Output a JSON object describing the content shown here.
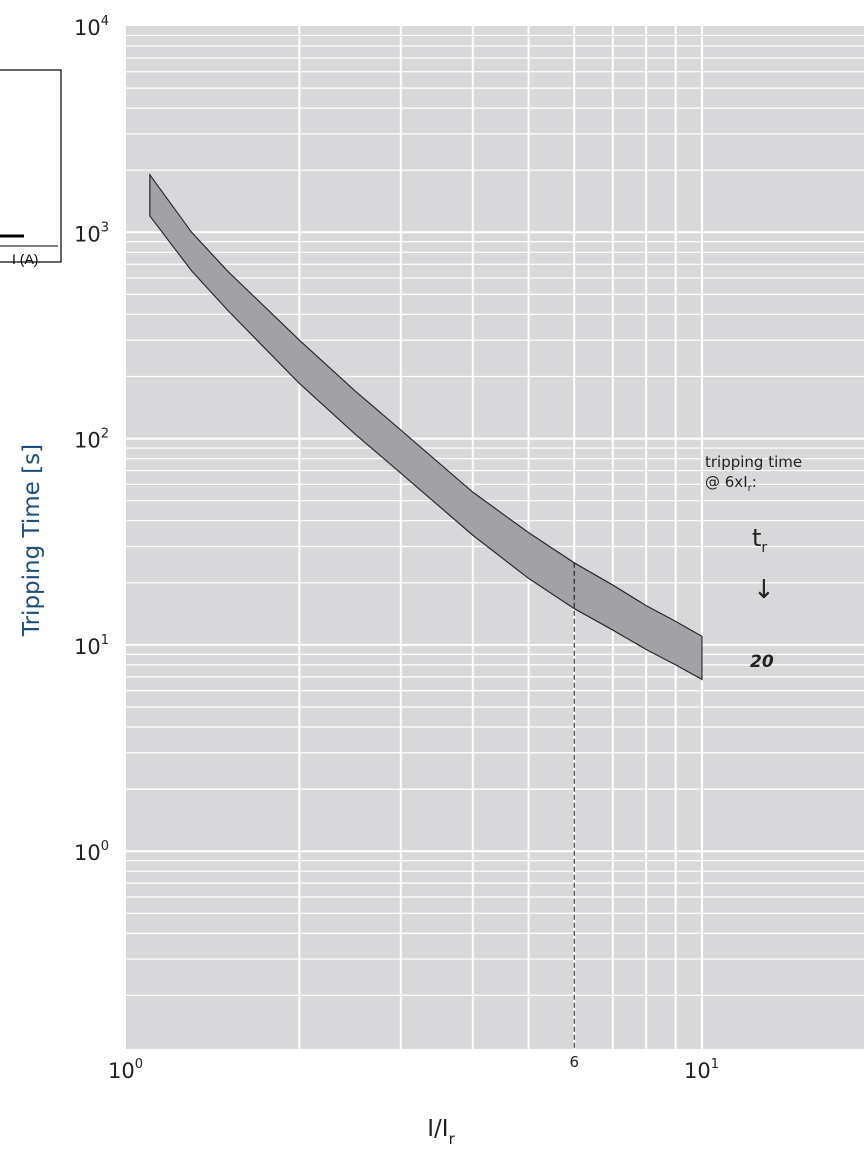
{
  "chart_data": {
    "type": "area",
    "title": "",
    "xlabel": "I/I",
    "xlabel_sub": "r",
    "ylabel": "Tripping Time [s]",
    "x_scale": "log",
    "y_scale": "log",
    "xlim": [
      1,
      14
    ],
    "ylim": [
      0.1,
      10000
    ],
    "grid": true,
    "x_ticks": [
      {
        "base": "10",
        "exp": "0",
        "value": 1
      },
      {
        "base": "10",
        "exp": "1",
        "value": 10
      }
    ],
    "x_extra_tick": {
      "label": "6",
      "value": 6
    },
    "y_ticks": [
      {
        "base": "10",
        "exp": "4",
        "value": 10000
      },
      {
        "base": "10",
        "exp": "3",
        "value": 1000
      },
      {
        "base": "10",
        "exp": "2",
        "value": 100
      },
      {
        "base": "10",
        "exp": "1",
        "value": 10
      },
      {
        "base": "10",
        "exp": "0",
        "value": 1
      }
    ],
    "band": {
      "x": [
        1.1,
        1.3,
        1.5,
        2,
        2.5,
        3,
        4,
        5,
        6,
        7,
        8,
        9,
        10
      ],
      "upper": [
        1900,
        1000,
        650,
        300,
        170,
        110,
        55,
        35,
        25,
        19.5,
        15.5,
        13,
        11
      ],
      "lower": [
        1200,
        650,
        420,
        185,
        105,
        68,
        34,
        21,
        15,
        11.8,
        9.5,
        8,
        6.8
      ]
    },
    "reference_line": {
      "x": 6
    },
    "annotation": {
      "line1": "tripping time",
      "line2_prefix": "@ 6xI",
      "line2_sub": "r",
      "line2_suffix": ":",
      "param": "t",
      "param_sub": "r",
      "arrow": "↓",
      "value": "20"
    },
    "colors": {
      "plot_bg": "#d8d8da",
      "grid": "#ffffff",
      "band_fill": "#a1a1a6",
      "band_edge": "#2b2b2b",
      "ylabel": "#1f4e79"
    }
  },
  "inset": {
    "axis_label": "I (A)"
  }
}
